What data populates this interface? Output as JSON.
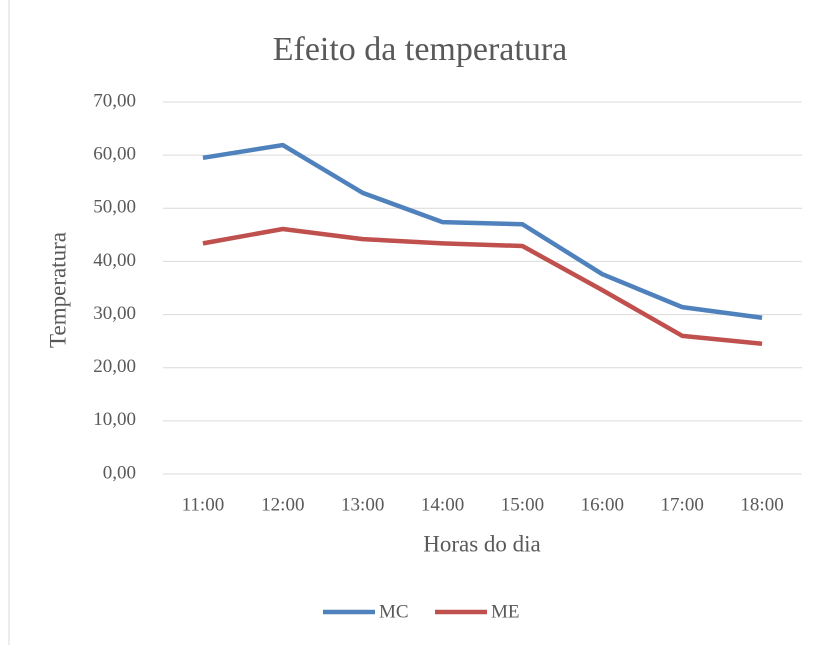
{
  "chart_data": {
    "type": "line",
    "title": "Efeito da temperatura",
    "xlabel": "Horas do dia",
    "ylabel": "Temperatura",
    "categories": [
      "11:00",
      "12:00",
      "13:00",
      "14:00",
      "15:00",
      "16:00",
      "17:00",
      "18:00"
    ],
    "series": [
      {
        "name": "MC",
        "color": "#4f81bd",
        "values": [
          59.5,
          61.9,
          52.9,
          47.4,
          47.0,
          37.6,
          31.4,
          29.4
        ]
      },
      {
        "name": "ME",
        "color": "#c0504d",
        "values": [
          43.4,
          46.1,
          44.2,
          43.4,
          42.9,
          34.6,
          26.0,
          24.5
        ]
      }
    ],
    "ylim": [
      0,
      70
    ],
    "yticks": [
      {
        "value": 0,
        "label": "0,00"
      },
      {
        "value": 10,
        "label": "10,00"
      },
      {
        "value": 20,
        "label": "20,00"
      },
      {
        "value": 30,
        "label": "30,00"
      },
      {
        "value": 40,
        "label": "40,00"
      },
      {
        "value": 50,
        "label": "50,00"
      },
      {
        "value": 60,
        "label": "60,00"
      },
      {
        "value": 70,
        "label": "70,00"
      }
    ],
    "grid": true,
    "legend": "bottom"
  }
}
